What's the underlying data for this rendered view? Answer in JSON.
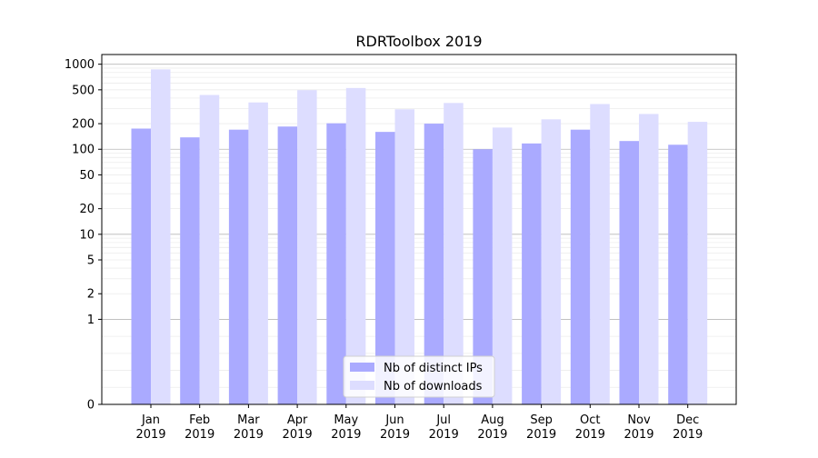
{
  "chart_data": {
    "type": "bar",
    "title": "RDRToolbox 2019",
    "xlabel": "",
    "ylabel": "",
    "y_scale": "symlog",
    "ylim": [
      0,
      1300
    ],
    "y_tick_labels": [
      "0",
      "1",
      "2",
      "5",
      "10",
      "20",
      "50",
      "100",
      "200",
      "500",
      "1000"
    ],
    "y_ticks": [
      0,
      1,
      2,
      5,
      10,
      20,
      50,
      100,
      200,
      500,
      1000
    ],
    "categories": [
      [
        "Jan",
        "2019"
      ],
      [
        "Feb",
        "2019"
      ],
      [
        "Mar",
        "2019"
      ],
      [
        "Apr",
        "2019"
      ],
      [
        "May",
        "2019"
      ],
      [
        "Jun",
        "2019"
      ],
      [
        "Jul",
        "2019"
      ],
      [
        "Aug",
        "2019"
      ],
      [
        "Sep",
        "2019"
      ],
      [
        "Oct",
        "2019"
      ],
      [
        "Nov",
        "2019"
      ],
      [
        "Dec",
        "2019"
      ]
    ],
    "series": [
      {
        "name": "Nb of distinct IPs",
        "color": "#aaaaff",
        "values": [
          175,
          138,
          170,
          185,
          202,
          160,
          200,
          100,
          117,
          170,
          125,
          113
        ]
      },
      {
        "name": "Nb of downloads",
        "color": "#ddddff",
        "values": [
          870,
          435,
          355,
          495,
          525,
          295,
          350,
          180,
          225,
          340,
          260,
          210
        ]
      }
    ],
    "grid": true,
    "legend_position": "bottom-center"
  }
}
